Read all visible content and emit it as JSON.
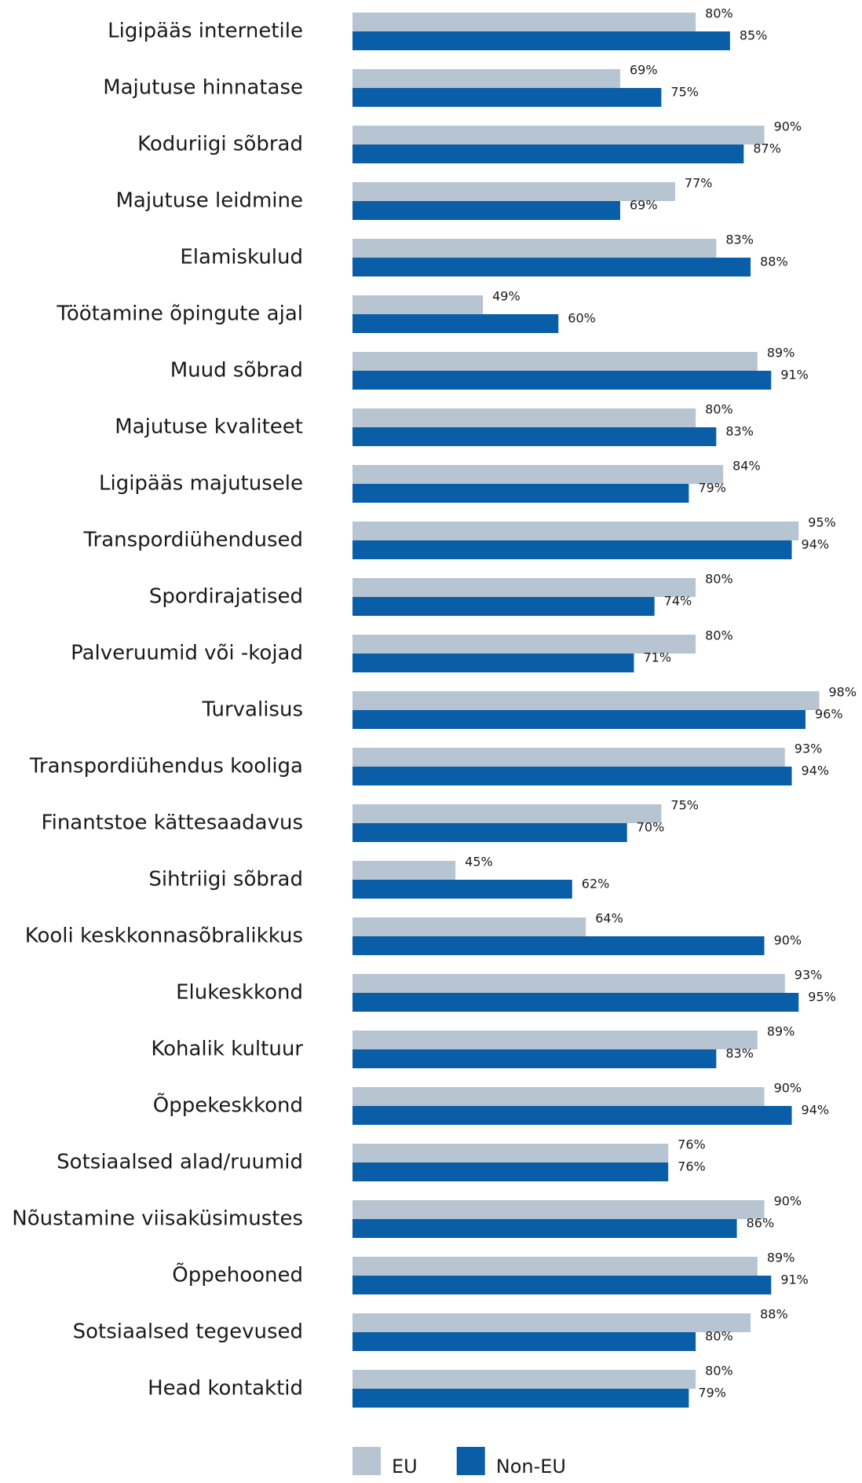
{
  "chart_data": {
    "type": "hbar",
    "categories": [
      "Ligipääs internetile",
      "Majutuse hinnatase",
      "Koduriigi sõbrad",
      "Majutuse leidmine",
      "Elamiskulud",
      "Töötamine õpingute ajal",
      "Muud sõbrad",
      "Majutuse kvaliteet",
      "Ligipääs majutusele",
      "Transpordiühendused",
      "Spordirajatised",
      "Palveruumid või -kojad",
      "Turvalisus",
      "Transpordiühendus kooliga",
      "Finantstoe kättesaadavus",
      "Sihtriigi sõbrad",
      "Kooli keskkonnasõbralikkus",
      "Elukeskkond",
      "Kohalik kultuur",
      "Õppekeskkond",
      "Sotsiaalsed alad/ruumid",
      "Nõustamine viisaküsimustes",
      "Õppehooned",
      "Sotsiaalsed tegevused",
      "Head kontaktid"
    ],
    "series": [
      {
        "name": "EU",
        "color": "#b7c4d1",
        "values": [
          80,
          69,
          90,
          77,
          83,
          49,
          89,
          80,
          84,
          95,
          80,
          80,
          98,
          93,
          75,
          45,
          64,
          93,
          89,
          90,
          76,
          90,
          89,
          88,
          80
        ],
        "value_labels": [
          "80%",
          "69%",
          "90%",
          "77%",
          "83%",
          "49%",
          "89%",
          "80%",
          "84%",
          "95%",
          "80%",
          "80%",
          "98%",
          "93%",
          "75%",
          "45%",
          "64%",
          "93%",
          "89%",
          "90%",
          "76%",
          "90%",
          "89%",
          "88%",
          "80%"
        ]
      },
      {
        "name": "Non-EU",
        "color": "#0a5ea8",
        "values": [
          85,
          75,
          87,
          69,
          88,
          60,
          91,
          83,
          79,
          94,
          74,
          71,
          96,
          94,
          70,
          62,
          90,
          95,
          83,
          94,
          76,
          86,
          91,
          80,
          79
        ],
        "value_labels": [
          "85%",
          "75%",
          "87%",
          "69%",
          "88%",
          "60%",
          "91%",
          "83%",
          "79%",
          "94%",
          "74%",
          "71%",
          "96%",
          "94%",
          "70%",
          "62%",
          "90%",
          "95%",
          "83%",
          "94%",
          "76%",
          "86%",
          "91%",
          "80%",
          "79%"
        ]
      }
    ],
    "xlim": [
      30,
      100
    ]
  }
}
